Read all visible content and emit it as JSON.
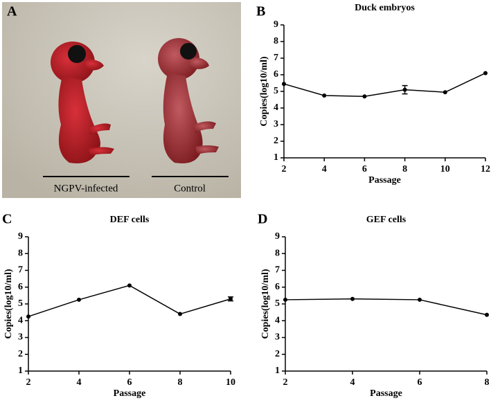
{
  "photo": {
    "label": "A",
    "captions": [
      "NGPV-infected",
      "Control"
    ]
  },
  "chart_data": [
    {
      "type": "line",
      "label": "B",
      "title": "Duck embryos",
      "x_label": "Passage",
      "y_label": "Copies(log10/ml)",
      "x": [
        2,
        4,
        6,
        8,
        10,
        12
      ],
      "series": [
        {
          "color": "#000000",
          "values": [
            5.45,
            4.75,
            4.7,
            5.1,
            4.95,
            6.1
          ],
          "errors": [
            null,
            null,
            null,
            0.25,
            null,
            null
          ]
        }
      ],
      "xlim": [
        2,
        12
      ],
      "xticks": [
        2,
        4,
        6,
        8,
        10,
        12
      ],
      "ylim": [
        1,
        9
      ],
      "yticks": [
        1,
        2,
        3,
        4,
        5,
        6,
        7,
        8,
        9
      ]
    },
    {
      "type": "line",
      "label": "C",
      "title": "DEF cells",
      "x_label": "Passage",
      "y_label": "Copies(log10/ml)",
      "x": [
        2,
        4,
        6,
        8,
        10
      ],
      "series": [
        {
          "color": "#000000",
          "values": [
            4.25,
            5.25,
            6.1,
            4.4,
            5.3
          ],
          "errors": [
            null,
            null,
            null,
            null,
            0.12
          ]
        }
      ],
      "xlim": [
        2,
        10
      ],
      "xticks": [
        2,
        4,
        6,
        8,
        10
      ],
      "ylim": [
        1,
        9
      ],
      "yticks": [
        1,
        2,
        3,
        4,
        5,
        6,
        7,
        8,
        9
      ]
    },
    {
      "type": "line",
      "label": "D",
      "title": "GEF cells",
      "x_label": "Passage",
      "y_label": "Copies(log10/ml)",
      "x": [
        2,
        4,
        6,
        8
      ],
      "series": [
        {
          "color": "#000000",
          "values": [
            5.25,
            5.3,
            5.25,
            4.35
          ],
          "errors": [
            null,
            null,
            null,
            null
          ]
        }
      ],
      "xlim": [
        2,
        8
      ],
      "xticks": [
        2,
        4,
        6,
        8
      ],
      "ylim": [
        1,
        9
      ],
      "yticks": [
        1,
        2,
        3,
        4,
        5,
        6,
        7,
        8,
        9
      ]
    }
  ]
}
